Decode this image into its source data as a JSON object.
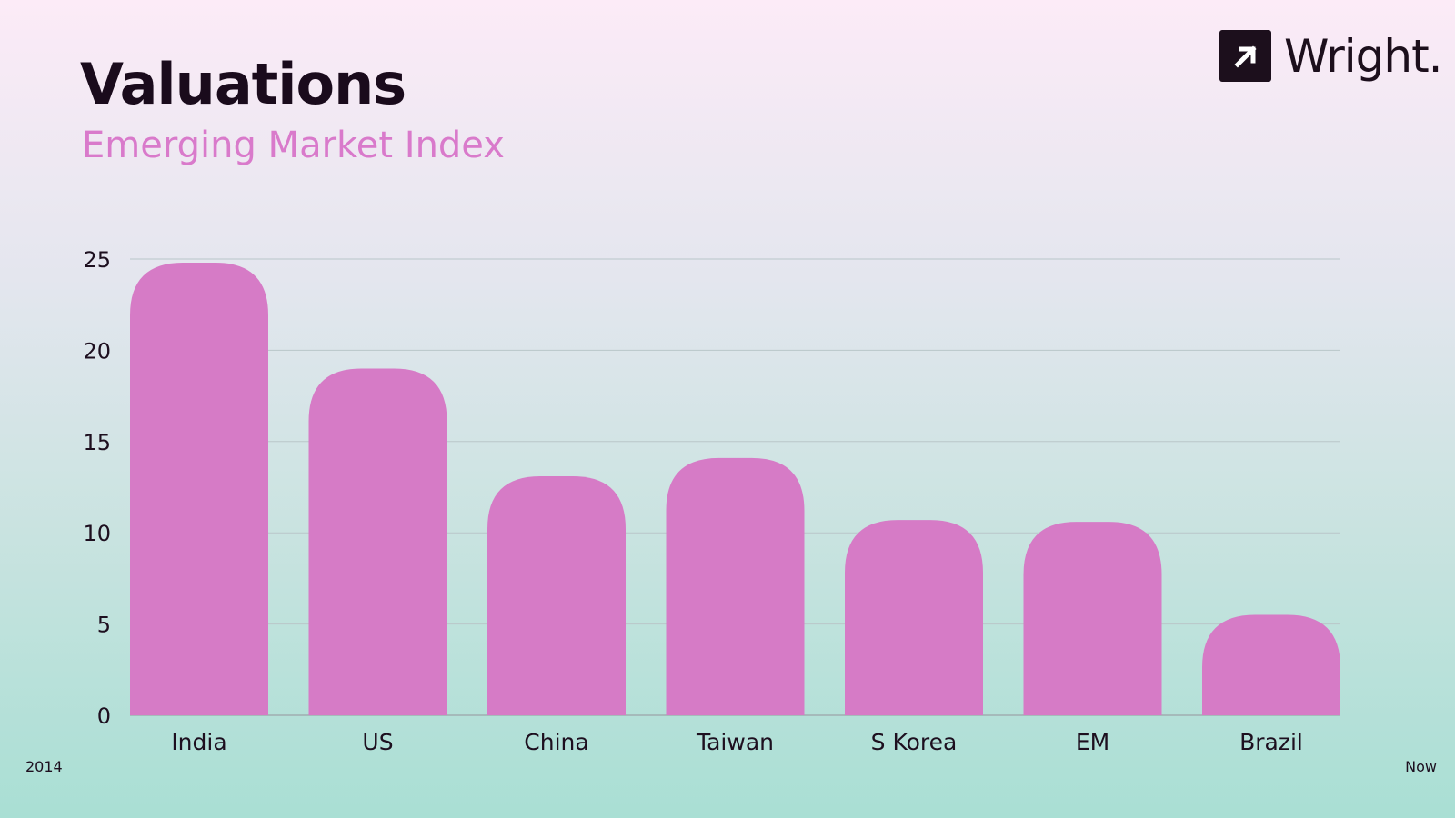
{
  "header": {
    "title": "Valuations",
    "subtitle": "Emerging Market Index"
  },
  "logo": {
    "text": "Wright.",
    "icon": "arrow-up-right-icon"
  },
  "footer": {
    "left": "2014",
    "right": "Now"
  },
  "colors": {
    "bar": "#d67bc6",
    "grid": "#b9c6c9",
    "subtitle": "#d97acb"
  },
  "chart_data": {
    "type": "bar",
    "title": "Valuations",
    "subtitle": "Emerging Market Index",
    "categories": [
      "India",
      "US",
      "China",
      "Taiwan",
      "S Korea",
      "EM",
      "Brazil"
    ],
    "values": [
      24.8,
      19.0,
      13.1,
      14.1,
      10.7,
      10.6,
      5.5
    ],
    "ylim": [
      0,
      25
    ],
    "yticks": [
      0,
      5,
      10,
      15,
      20,
      25
    ],
    "xlabel": "",
    "ylabel": "",
    "grid": true,
    "legend": "none"
  }
}
